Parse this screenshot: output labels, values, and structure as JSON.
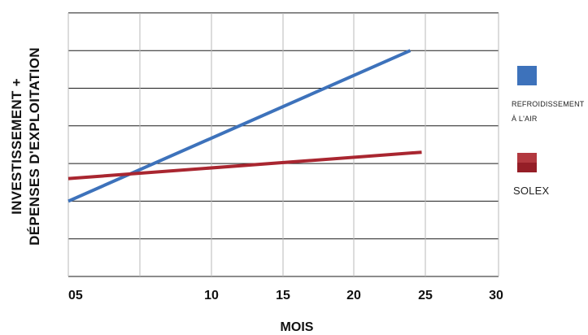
{
  "chart_data": {
    "type": "line",
    "xlabel": "MOIS",
    "ylabel_lines": [
      "INVESTISSEMENT +",
      "DÉPENSES D'EXPLOITATION"
    ],
    "x_ticks": [
      {
        "label": "05",
        "value": 0
      },
      {
        "label": "10",
        "value": 10
      },
      {
        "label": "15",
        "value": 15
      },
      {
        "label": "20",
        "value": 20
      },
      {
        "label": "25",
        "value": 25
      },
      {
        "label": "30",
        "value": 30
      }
    ],
    "ylim": [
      0,
      7
    ],
    "grid": true,
    "series": [
      {
        "name": "REFROIDISSEMENT À L'AIR",
        "color": "#3d72bb",
        "points": [
          [
            0,
            2.0
          ],
          [
            24.0,
            6.0
          ]
        ]
      },
      {
        "name": "SOLEX",
        "color": "#a92630",
        "points": [
          [
            0,
            2.6
          ],
          [
            24.8,
            3.3
          ]
        ]
      }
    ]
  },
  "legend": [
    {
      "label_lines": [
        "REFROIDISSEMENT",
        "À L'AIR"
      ],
      "color": "#3d72bb"
    },
    {
      "label_lines": [
        "SOLEX"
      ],
      "color": "#a92630"
    }
  ]
}
